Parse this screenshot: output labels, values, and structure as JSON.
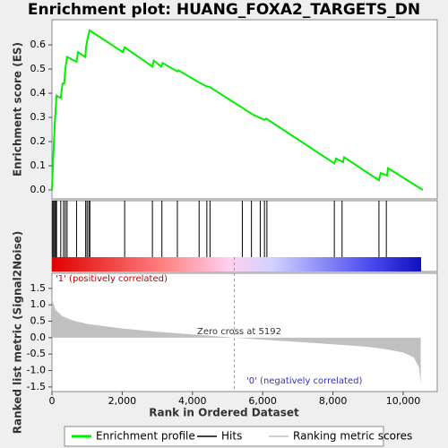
{
  "chart_data": [
    {
      "type": "line",
      "title": "Enrichment plot: HUANG_FOXA2_TARGETS_DN",
      "ylabel": "Enrichment score (ES)",
      "xlim": [
        0,
        10970
      ],
      "ylim": [
        -0.037,
        0.704
      ],
      "yticks": [
        {
          "value": 0,
          "label": "0.0"
        },
        0.1,
        0.2,
        0.3,
        0.4,
        0.5,
        0.6
      ],
      "series": [
        {
          "name": "Enrichment profile",
          "color": "#00ee00",
          "x": [
            0,
            30,
            60,
            90,
            130,
            250,
            300,
            350,
            380,
            430,
            700,
            740,
            950,
            970,
            1020,
            1070,
            2020,
            2070,
            2860,
            2900,
            3110,
            3150,
            3570,
            3600,
            4180,
            4380,
            4500,
            5740,
            6050,
            6100,
            8040,
            8090,
            8290,
            8320,
            9310,
            9360,
            9540,
            9570,
            10560
          ],
          "values": [
            0,
            0.11,
            0.21,
            0.3,
            0.39,
            0.38,
            0.44,
            0.44,
            0.5,
            0.55,
            0.53,
            0.57,
            0.55,
            0.59,
            0.63,
            0.66,
            0.57,
            0.59,
            0.51,
            0.535,
            0.51,
            0.525,
            0.49,
            0.495,
            0.445,
            0.43,
            0.425,
            0.31,
            0.29,
            0.295,
            0.11,
            0.13,
            0.115,
            0.135,
            0.04,
            0.07,
            0.06,
            0.09,
            0
          ]
        }
      ]
    },
    {
      "type": "rug",
      "xlim": [
        0,
        10970
      ],
      "series": [
        {
          "name": "Hits",
          "color": "#000000",
          "x": [
            20,
            50,
            80,
            110,
            130,
            250,
            330,
            380,
            430,
            700,
            960,
            1000,
            1050,
            1080,
            2070,
            2860,
            3130,
            3570,
            4190,
            4410,
            4500,
            5420,
            5680,
            5930,
            6050,
            6120,
            8040,
            8260,
            9310,
            9520
          ]
        }
      ]
    },
    {
      "type": "area",
      "ylabel": "Ranked list metric (Signal2Noise)",
      "xlabel": "Rank in Ordered Dataset",
      "xlim": [
        0,
        10970
      ],
      "ylim": [
        -1.64,
        1.96
      ],
      "xticks": [
        0,
        {
          "value": 2000,
          "label": "2,000"
        },
        {
          "value": 4000,
          "label": "4,000"
        },
        {
          "value": 6000,
          "label": "6,000"
        },
        {
          "value": 8000,
          "label": "8,000"
        },
        {
          "value": 10000,
          "label": "10,000"
        }
      ],
      "yticks": [
        1.5,
        {
          "value": 1,
          "label": "1.0"
        },
        0.5,
        {
          "value": 0,
          "label": "0.0"
        },
        -0.5,
        {
          "value": -1,
          "label": "-1.0"
        },
        -1.5
      ],
      "positive_label": "'1' (positively correlated)",
      "negative_label": "'0' (negatively correlated)",
      "zero_cross": 5192,
      "zero_cross_label": "Zero cross at 5192",
      "series": [
        {
          "name": "Ranking metric scores",
          "color": "#c0c0c0",
          "x": [
            0,
            100,
            300,
            600,
            1000,
            2000,
            3000,
            4000,
            5192,
            6000,
            7000,
            8000,
            9000,
            9500,
            10000,
            10300,
            10450,
            10500
          ],
          "values": [
            1.2,
            0.85,
            0.65,
            0.52,
            0.42,
            0.28,
            0.18,
            0.1,
            0,
            -0.06,
            -0.13,
            -0.2,
            -0.28,
            -0.35,
            -0.45,
            -0.6,
            -0.9,
            -1.4
          ]
        }
      ]
    }
  ]
}
